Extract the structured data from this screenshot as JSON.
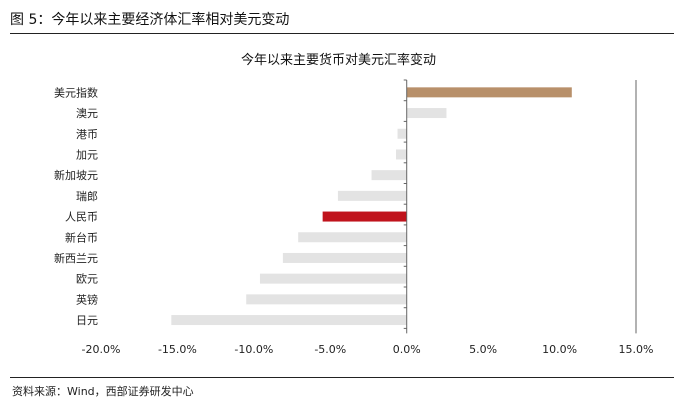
{
  "figure": {
    "title": "图 5：今年以来主要经济体汇率相对美元变动",
    "source": "资料来源：Wind，西部证券研发中心"
  },
  "chart_data": {
    "type": "bar",
    "orientation": "horizontal",
    "title": "今年以来主要货币对美元汇率变动",
    "categories": [
      "美元指数",
      "澳元",
      "港币",
      "加元",
      "新加坡元",
      "瑞郎",
      "人民币",
      "新台币",
      "新西兰元",
      "欧元",
      "英镑",
      "日元"
    ],
    "values": [
      10.8,
      2.6,
      -0.6,
      -0.7,
      -2.3,
      -4.5,
      -5.5,
      -7.1,
      -8.1,
      -9.6,
      -10.5,
      -15.4
    ],
    "bar_colors": [
      "#b8906a",
      "#e3e3e3",
      "#e3e3e3",
      "#e3e3e3",
      "#e3e3e3",
      "#e3e3e3",
      "#c0131c",
      "#e3e3e3",
      "#e3e3e3",
      "#e3e3e3",
      "#e3e3e3",
      "#e3e3e3"
    ],
    "xlim": [
      -20,
      15
    ],
    "xticks": [
      -20,
      -15,
      -10,
      -5,
      0,
      5,
      10,
      15
    ],
    "xtick_labels": [
      "-20.0%",
      "-15.0%",
      "-10.0%",
      "-5.0%",
      "0.0%",
      "5.0%",
      "10.0%",
      "15.0%"
    ],
    "xlabel": "",
    "ylabel": "",
    "grid": false,
    "legend": "none"
  }
}
